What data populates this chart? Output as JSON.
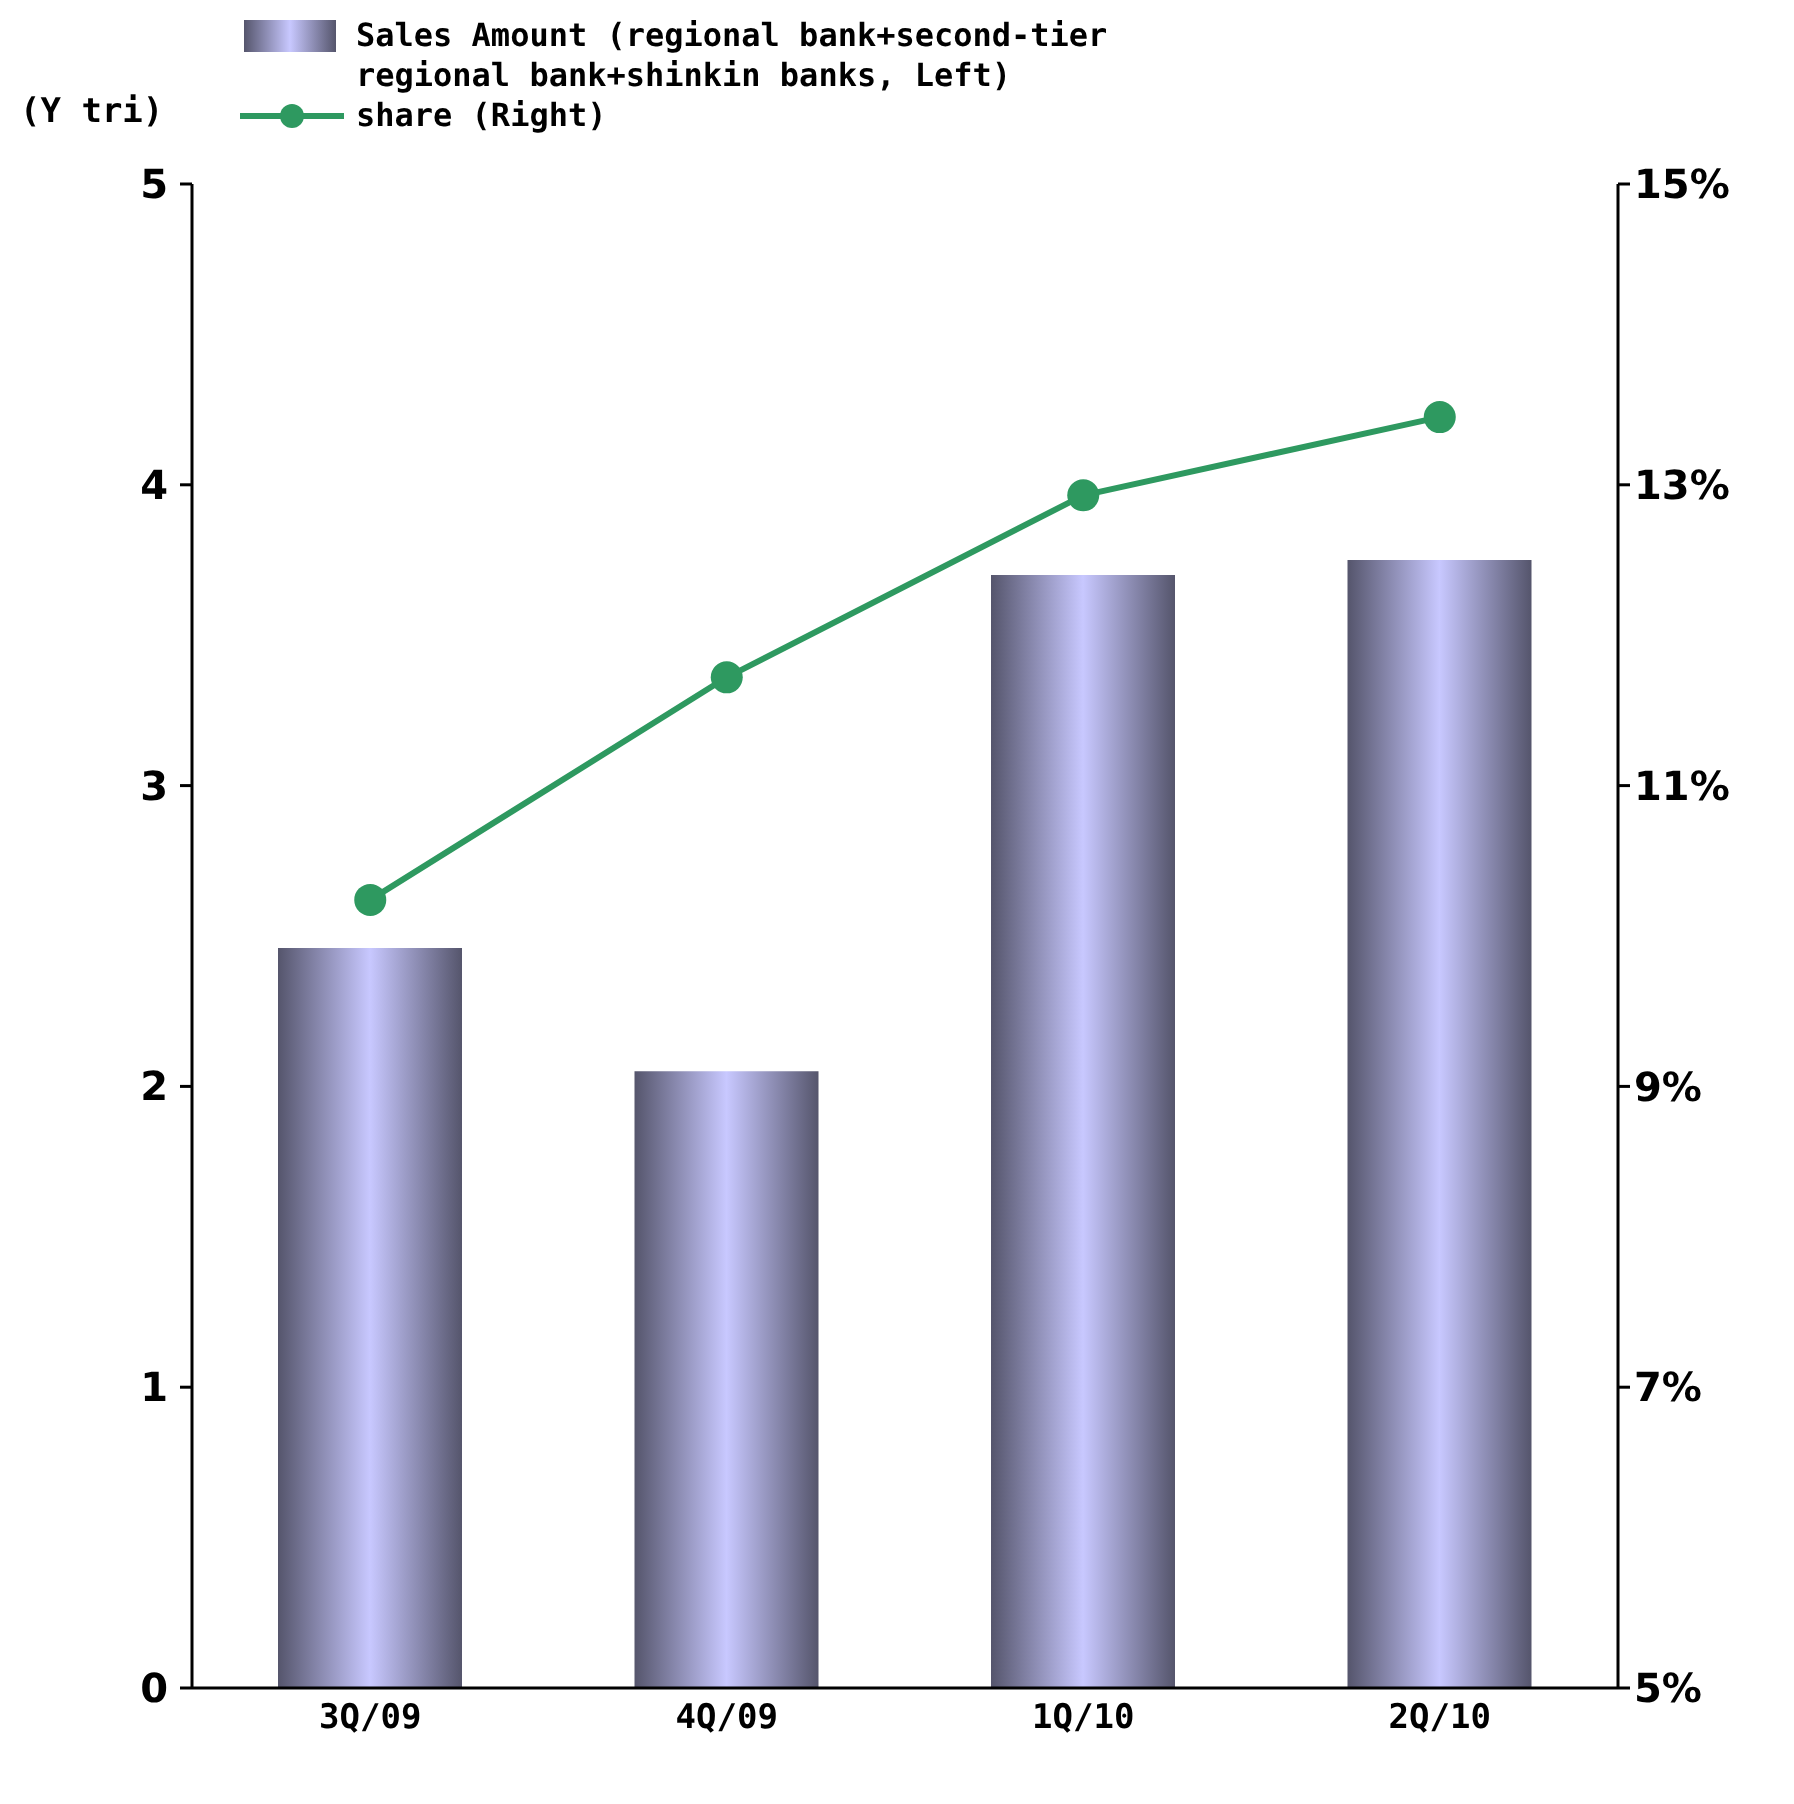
{
  "chart_data": {
    "type": "bar",
    "ylabel": "(Y tri)",
    "categories": [
      "3Q/09",
      "4Q/09",
      "1Q/10",
      "2Q/10"
    ],
    "series": [
      {
        "name": "Sales Amount (regional bank+second-tier regional bank+shinkin banks, Left)",
        "color": "#c8c8ff",
        "values": [
          2.46,
          2.05,
          3.7,
          3.75
        ]
      },
      {
        "name": "share (Right)",
        "type": "line",
        "axis": "y2",
        "color": "#2e9960",
        "values": [
          10.24,
          11.72,
          12.93,
          13.45
        ]
      }
    ],
    "ylim": [
      0,
      5
    ],
    "yticks": [
      0,
      1,
      2,
      3,
      4,
      5
    ],
    "y2lim": [
      5,
      15
    ],
    "y2ticks": [
      {
        "value": 5,
        "label": "5%"
      },
      {
        "value": 7,
        "label": "7%"
      },
      {
        "value": 9,
        "label": "9%"
      },
      {
        "value": 11,
        "label": "11%"
      },
      {
        "value": 13,
        "label": "13%"
      },
      {
        "value": 15,
        "label": "15%"
      }
    ],
    "grid": false,
    "legend": "top left",
    "marker": "circle",
    "line_style": "solid"
  }
}
